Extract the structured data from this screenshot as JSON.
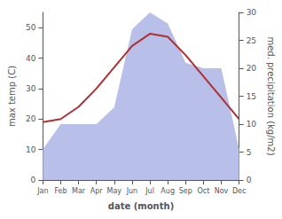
{
  "chart_data": {
    "type": "line",
    "xlabel": "date (month)",
    "ylabel": "max temp (C)",
    "y2label": "med. precipitation (kg/m2)",
    "categories": [
      "Jan",
      "Feb",
      "Mar",
      "Apr",
      "May",
      "Jun",
      "Jul",
      "Aug",
      "Sep",
      "Oct",
      "Nov",
      "Dec"
    ],
    "series": [
      {
        "type": "area",
        "axis": "y2",
        "color": "#b8bfe8",
        "values": [
          5.5,
          10,
          10,
          10,
          13,
          27,
          30,
          28,
          21,
          20,
          20,
          5.5
        ]
      },
      {
        "type": "line",
        "color": "#b03030",
        "values": [
          19,
          20,
          24,
          30,
          37,
          44,
          48,
          47,
          41,
          34,
          27,
          20
        ]
      }
    ],
    "ylim": [
      0,
      55
    ],
    "yticks": [
      0,
      10,
      20,
      30,
      40,
      50
    ],
    "y2lim": [
      0,
      30
    ],
    "y2ticks": [
      0,
      5,
      10,
      15,
      20,
      25,
      30
    ],
    "grid": false
  }
}
